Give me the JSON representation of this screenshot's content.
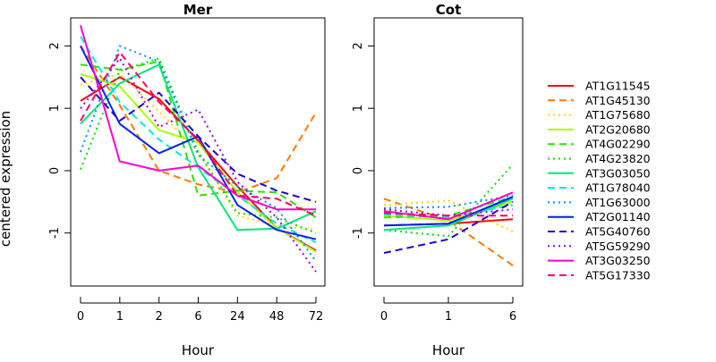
{
  "chart_data": [
    {
      "type": "line",
      "title": "Mer",
      "xlabel": "Hour",
      "ylabel": "centered expression",
      "categories": [
        "0",
        "1",
        "2",
        "6",
        "24",
        "48",
        "72"
      ],
      "ylim": [
        -1.85,
        2.45
      ],
      "yticks": [
        2,
        1,
        0,
        -1
      ],
      "grid": false,
      "series": [
        {
          "name": "AT1G11545",
          "color": "#ff0000",
          "dash": "solid",
          "values": [
            1.12,
            1.5,
            1.15,
            0.48,
            -0.25,
            -0.92,
            -1.28
          ]
        },
        {
          "name": "AT1G45130",
          "color": "#ff7a00",
          "dash": "long",
          "values": [
            2.0,
            1.05,
            0.0,
            -0.22,
            -0.35,
            -0.12,
            0.93
          ]
        },
        {
          "name": "AT1G75680",
          "color": "#ffd500",
          "dash": "dotted",
          "values": [
            1.38,
            1.55,
            0.95,
            0.3,
            -0.72,
            -0.88,
            -0.95
          ]
        },
        {
          "name": "AT2G20680",
          "color": "#aaff00",
          "dash": "solid",
          "values": [
            1.55,
            1.35,
            0.65,
            0.45,
            -0.35,
            -0.92,
            -1.3
          ]
        },
        {
          "name": "AT4G02290",
          "color": "#30e000",
          "dash": "long",
          "values": [
            1.7,
            1.62,
            1.75,
            -0.4,
            -0.32,
            -0.35,
            -0.75
          ]
        },
        {
          "name": "AT4G23820",
          "color": "#00e000",
          "dash": "dotted",
          "values": [
            0.02,
            1.6,
            1.8,
            0.3,
            -0.68,
            -0.75,
            -1.0
          ]
        },
        {
          "name": "AT3G03050",
          "color": "#00e87a",
          "dash": "solid",
          "values": [
            0.75,
            1.4,
            1.7,
            0.05,
            -0.95,
            -0.93,
            -0.65
          ]
        },
        {
          "name": "AT1G78040",
          "color": "#00e8e8",
          "dash": "long",
          "values": [
            2.15,
            1.1,
            0.5,
            0.05,
            -0.4,
            -0.85,
            -1.15
          ]
        },
        {
          "name": "AT1G63000",
          "color": "#0090ff",
          "dash": "dotted",
          "values": [
            0.3,
            2.0,
            1.75,
            0.25,
            -0.25,
            -0.6,
            -1.45
          ]
        },
        {
          "name": "AT2G01140",
          "color": "#0022ee",
          "dash": "solid",
          "values": [
            2.0,
            0.75,
            0.28,
            0.55,
            -0.55,
            -0.95,
            -1.1
          ]
        },
        {
          "name": "AT5G40760",
          "color": "#2200cc",
          "dash": "long",
          "values": [
            1.5,
            0.8,
            1.25,
            0.55,
            -0.05,
            -0.32,
            -0.5
          ]
        },
        {
          "name": "AT5G59290",
          "color": "#9a00ee",
          "dash": "dotted",
          "values": [
            1.0,
            1.8,
            0.7,
            0.98,
            -0.18,
            -0.75,
            -1.62
          ]
        },
        {
          "name": "AT3G03250",
          "color": "#ff00cc",
          "dash": "solid",
          "values": [
            2.33,
            0.15,
            0.0,
            0.08,
            -0.4,
            -0.62,
            -0.62
          ]
        },
        {
          "name": "AT5G17330",
          "color": "#ff0060",
          "dash": "long",
          "values": [
            0.8,
            1.9,
            1.1,
            0.5,
            -0.4,
            -0.45,
            -0.72
          ]
        }
      ]
    },
    {
      "type": "line",
      "title": "Cot",
      "xlabel": "Hour",
      "ylabel": "",
      "categories": [
        "0",
        "1",
        "6"
      ],
      "ylim": [
        -1.85,
        2.45
      ],
      "yticks": [
        2,
        1,
        0,
        -1
      ],
      "grid": false,
      "series": [
        {
          "name": "AT1G11545",
          "color": "#ff0000",
          "dash": "solid",
          "values": [
            -0.88,
            -0.85,
            -0.78
          ]
        },
        {
          "name": "AT1G45130",
          "color": "#ff7a00",
          "dash": "long",
          "values": [
            -0.45,
            -0.8,
            -1.52
          ]
        },
        {
          "name": "AT1G75680",
          "color": "#ffd500",
          "dash": "dotted",
          "values": [
            -0.55,
            -0.48,
            -0.98
          ]
        },
        {
          "name": "AT2G20680",
          "color": "#aaff00",
          "dash": "solid",
          "values": [
            -0.72,
            -0.8,
            -0.5
          ]
        },
        {
          "name": "AT4G02290",
          "color": "#30e000",
          "dash": "long",
          "values": [
            -0.75,
            -0.72,
            -0.42
          ]
        },
        {
          "name": "AT4G23820",
          "color": "#00e000",
          "dash": "dotted",
          "values": [
            -0.95,
            -1.05,
            0.1
          ]
        },
        {
          "name": "AT3G03050",
          "color": "#00e87a",
          "dash": "solid",
          "values": [
            -0.95,
            -0.88,
            -0.45
          ]
        },
        {
          "name": "AT1G78040",
          "color": "#00e8e8",
          "dash": "long",
          "values": [
            -0.7,
            -0.75,
            -0.55
          ]
        },
        {
          "name": "AT1G63000",
          "color": "#0090ff",
          "dash": "dotted",
          "values": [
            -0.6,
            -0.58,
            -0.4
          ]
        },
        {
          "name": "AT2G01140",
          "color": "#0022ee",
          "dash": "solid",
          "values": [
            -0.88,
            -0.85,
            -0.42
          ]
        },
        {
          "name": "AT5G40760",
          "color": "#2200cc",
          "dash": "long",
          "values": [
            -1.32,
            -1.1,
            -0.5
          ]
        },
        {
          "name": "AT5G59290",
          "color": "#9a00ee",
          "dash": "dotted",
          "values": [
            -0.62,
            -0.72,
            -0.62
          ]
        },
        {
          "name": "AT3G03250",
          "color": "#ff00cc",
          "dash": "solid",
          "values": [
            -0.65,
            -0.78,
            -0.35
          ]
        },
        {
          "name": "AT5G17330",
          "color": "#ff0060",
          "dash": "long",
          "values": [
            -0.68,
            -0.72,
            -0.72
          ]
        }
      ]
    }
  ],
  "legend": {
    "placement": "right",
    "entries": [
      {
        "label": "AT1G11545",
        "color": "#ff0000",
        "dash": "solid"
      },
      {
        "label": "AT1G45130",
        "color": "#ff7a00",
        "dash": "long"
      },
      {
        "label": "AT1G75680",
        "color": "#ffd500",
        "dash": "dotted"
      },
      {
        "label": "AT2G20680",
        "color": "#aaff00",
        "dash": "solid"
      },
      {
        "label": "AT4G02290",
        "color": "#30e000",
        "dash": "long"
      },
      {
        "label": "AT4G23820",
        "color": "#00e000",
        "dash": "dotted"
      },
      {
        "label": "AT3G03050",
        "color": "#00e87a",
        "dash": "solid"
      },
      {
        "label": "AT1G78040",
        "color": "#00e8e8",
        "dash": "long"
      },
      {
        "label": "AT1G63000",
        "color": "#0090ff",
        "dash": "dotted"
      },
      {
        "label": "AT2G01140",
        "color": "#0022ee",
        "dash": "solid"
      },
      {
        "label": "AT5G40760",
        "color": "#2200cc",
        "dash": "long"
      },
      {
        "label": "AT5G59290",
        "color": "#9a00ee",
        "dash": "dotted"
      },
      {
        "label": "AT3G03250",
        "color": "#ff00cc",
        "dash": "solid"
      },
      {
        "label": "AT5G17330",
        "color": "#ff0060",
        "dash": "long"
      }
    ]
  }
}
